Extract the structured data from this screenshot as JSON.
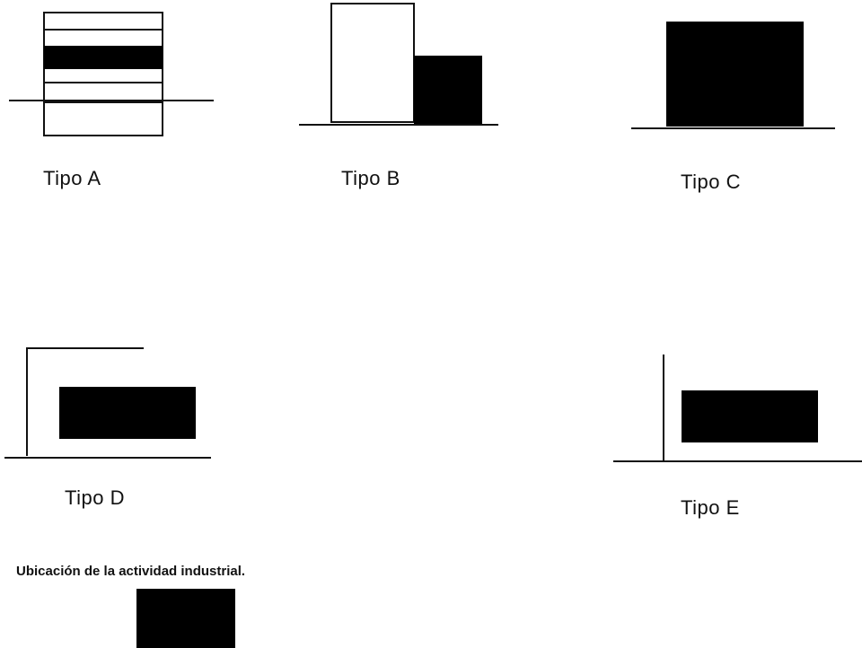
{
  "diagram": {
    "types": [
      {
        "id": "A",
        "label": "Tipo A"
      },
      {
        "id": "B",
        "label": "Tipo B"
      },
      {
        "id": "C",
        "label": "Tipo C"
      },
      {
        "id": "D",
        "label": "Tipo D"
      },
      {
        "id": "E",
        "label": "Tipo E"
      }
    ],
    "legend": {
      "label": "Ubicación de la actividad industrial."
    },
    "colors": {
      "industrial": "#000000",
      "outline": "#111111",
      "background": "#ffffff"
    }
  }
}
